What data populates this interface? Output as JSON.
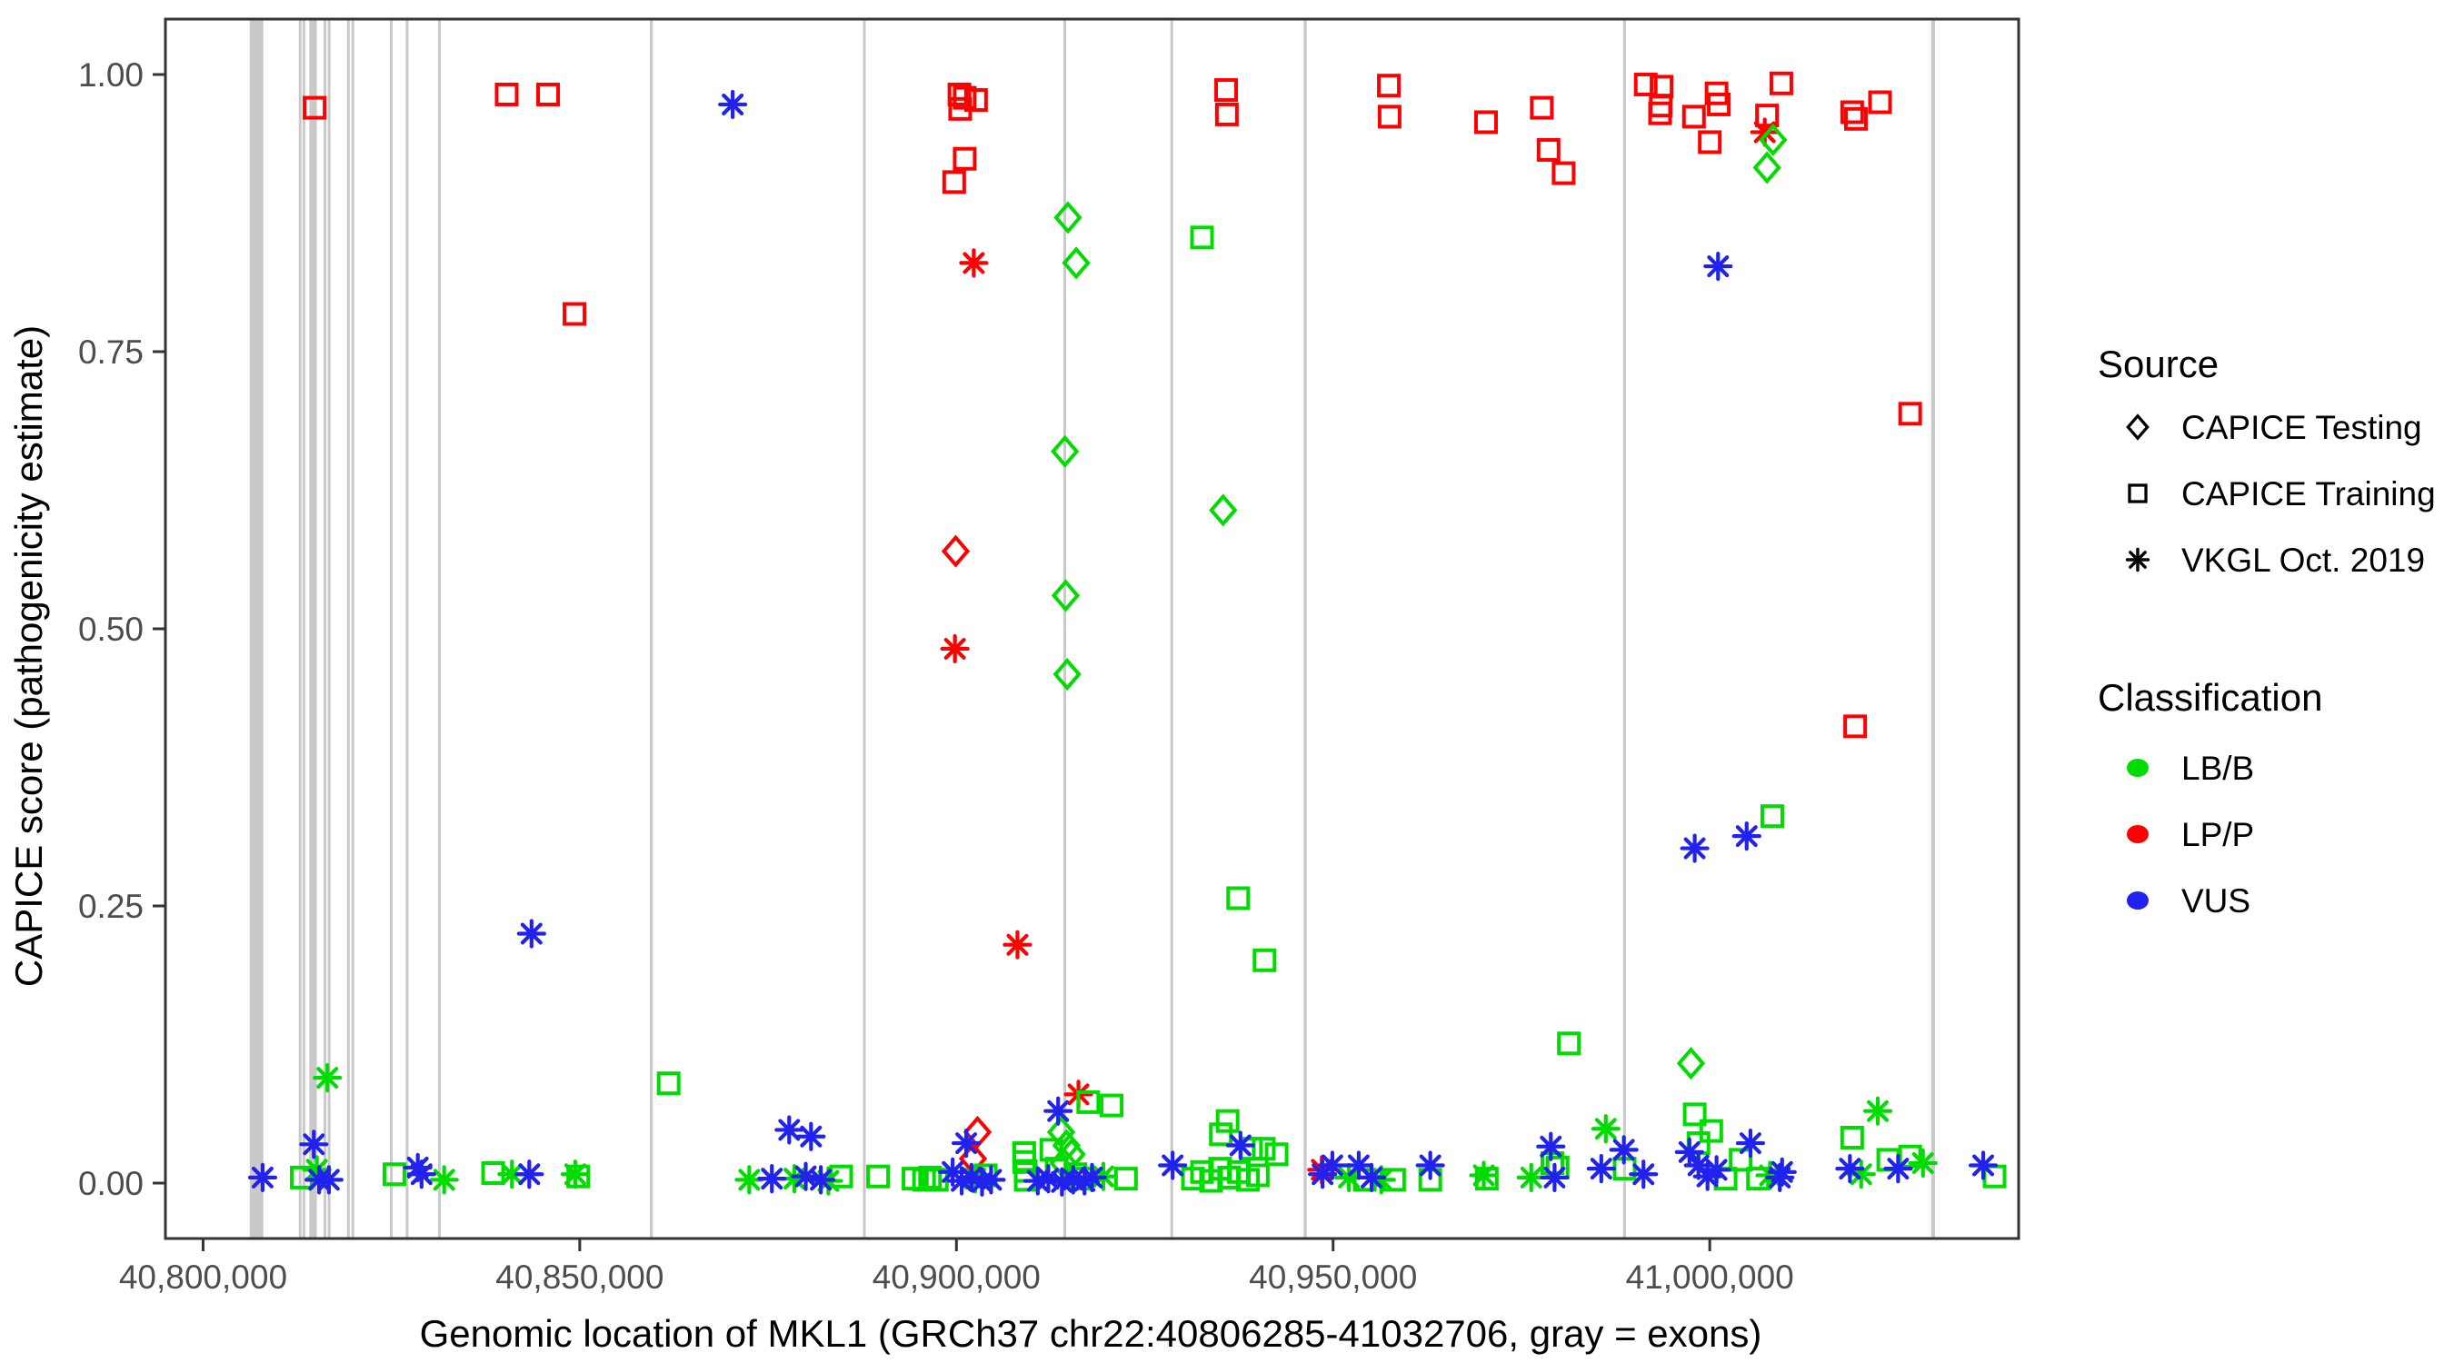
{
  "chart_data": {
    "type": "scatter",
    "title": "",
    "xlabel": "Genomic location of MKL1 (GRCh37 chr22:40806285-41032706, gray = exons)",
    "ylabel": "CAPICE score (pathogenicity estimate)",
    "xlim": [
      40795000,
      41041000
    ],
    "ylim": [
      -0.05,
      1.05
    ],
    "grid": false,
    "x_ticks": [
      {
        "value": 40800000,
        "label": "40,800,000"
      },
      {
        "value": 40850000,
        "label": "40,850,000"
      },
      {
        "value": 40900000,
        "label": "40,900,000"
      },
      {
        "value": 40950000,
        "label": "40,950,000"
      },
      {
        "value": 41000000,
        "label": "41,000,000"
      }
    ],
    "y_ticks": [
      {
        "value": 0.0,
        "label": "0.00"
      },
      {
        "value": 0.25,
        "label": "0.25"
      },
      {
        "value": 0.5,
        "label": "0.50"
      },
      {
        "value": 0.75,
        "label": "0.75"
      },
      {
        "value": 1.0,
        "label": "1.00"
      }
    ],
    "colors": {
      "G": "#00DC00",
      "P": "#FF0000",
      "U": "#2222EE",
      "exon": "#C9C9C9",
      "panel_border": "#333333",
      "tick_text": "#4D4D4D",
      "legend_glyph": "#000000"
    },
    "legend": {
      "position": "right",
      "source_title": "Source",
      "source_items": [
        {
          "label": "CAPICE Testing",
          "shape": "d"
        },
        {
          "label": "CAPICE Training",
          "shape": "s"
        },
        {
          "label": "VKGL Oct. 2019",
          "shape": "a"
        }
      ],
      "classification_title": "Classification",
      "classification_items": [
        {
          "label": "LB/B",
          "color": "G"
        },
        {
          "label": "LP/P",
          "color": "P"
        },
        {
          "label": "VUS",
          "color": "U"
        }
      ]
    },
    "exons": [
      [
        40806200,
        40808000
      ],
      [
        40812700,
        40812900
      ],
      [
        40813200,
        40813400
      ],
      [
        40814100,
        40815100
      ],
      [
        40816000,
        40816250
      ],
      [
        40816550,
        40816800
      ],
      [
        40819100,
        40819350
      ],
      [
        40819700,
        40819950
      ],
      [
        40824800,
        40825100
      ],
      [
        40826900,
        40827200
      ],
      [
        40831200,
        40831500
      ],
      [
        40859300,
        40859700
      ],
      [
        40887600,
        40887950
      ],
      [
        40914200,
        40914500
      ],
      [
        40928400,
        40928750
      ],
      [
        40946100,
        40946500
      ],
      [
        40988500,
        40988850
      ],
      [
        41029400,
        41029900
      ]
    ],
    "points_format": [
      "genomic_location",
      "capice_score",
      "source(d=CAPICE Testing,s=CAPICE Training,a=VKGL Oct. 2019)",
      "classification(G=LB/B,P=LP/P,U=VUS)"
    ],
    "points": [
      [
        40814800,
        0.97,
        "s",
        "P"
      ],
      [
        40840300,
        0.982,
        "s",
        "P"
      ],
      [
        40845800,
        0.982,
        "s",
        "P"
      ],
      [
        40849300,
        0.784,
        "s",
        "P"
      ],
      [
        40899700,
        0.903,
        "s",
        "P"
      ],
      [
        40900400,
        0.982,
        "s",
        "P"
      ],
      [
        40900500,
        0.969,
        "s",
        "P"
      ],
      [
        40901100,
        0.979,
        "s",
        "P"
      ],
      [
        40901100,
        0.924,
        "s",
        "P"
      ],
      [
        40902600,
        0.977,
        "s",
        "P"
      ],
      [
        40935800,
        0.986,
        "s",
        "P"
      ],
      [
        40935900,
        0.964,
        "s",
        "P"
      ],
      [
        40957400,
        0.99,
        "s",
        "P"
      ],
      [
        40957500,
        0.962,
        "s",
        "P"
      ],
      [
        40970300,
        0.957,
        "s",
        "P"
      ],
      [
        40977700,
        0.97,
        "s",
        "P"
      ],
      [
        40978600,
        0.932,
        "s",
        "P"
      ],
      [
        40980600,
        0.911,
        "s",
        "P"
      ],
      [
        40991500,
        0.991,
        "s",
        "P"
      ],
      [
        40993600,
        0.989,
        "s",
        "P"
      ],
      [
        40993500,
        0.972,
        "s",
        "P"
      ],
      [
        40993400,
        0.965,
        "s",
        "P"
      ],
      [
        40997900,
        0.962,
        "s",
        "P"
      ],
      [
        41000900,
        0.983,
        "s",
        "P"
      ],
      [
        41001200,
        0.973,
        "s",
        "P"
      ],
      [
        41000000,
        0.939,
        "s",
        "P"
      ],
      [
        41009500,
        0.992,
        "s",
        "P"
      ],
      [
        41007600,
        0.963,
        "s",
        "P"
      ],
      [
        41018900,
        0.966,
        "s",
        "P"
      ],
      [
        41019400,
        0.96,
        "s",
        "P"
      ],
      [
        41022600,
        0.975,
        "s",
        "P"
      ],
      [
        41026600,
        0.694,
        "s",
        "P"
      ],
      [
        41019300,
        0.412,
        "s",
        "P"
      ],
      [
        40902300,
        0.83,
        "a",
        "P"
      ],
      [
        40899800,
        0.482,
        "a",
        "P"
      ],
      [
        40908100,
        0.215,
        "a",
        "P"
      ],
      [
        40916200,
        0.08,
        "a",
        "P"
      ],
      [
        40948500,
        0.012,
        "a",
        "P"
      ],
      [
        41007300,
        0.948,
        "a",
        "P"
      ],
      [
        40899900,
        0.57,
        "d",
        "P"
      ],
      [
        40902800,
        0.046,
        "d",
        "P"
      ],
      [
        40902200,
        0.022,
        "d",
        "P"
      ],
      [
        40914800,
        0.871,
        "d",
        "G"
      ],
      [
        40915900,
        0.83,
        "d",
        "G"
      ],
      [
        40914400,
        0.66,
        "d",
        "G"
      ],
      [
        40914500,
        0.53,
        "d",
        "G"
      ],
      [
        40914700,
        0.459,
        "d",
        "G"
      ],
      [
        40935400,
        0.607,
        "d",
        "G"
      ],
      [
        41008400,
        0.941,
        "d",
        "G"
      ],
      [
        41007600,
        0.916,
        "d",
        "G"
      ],
      [
        40997500,
        0.108,
        "d",
        "G"
      ],
      [
        40913900,
        0.046,
        "d",
        "G"
      ],
      [
        40914600,
        0.034,
        "d",
        "G"
      ],
      [
        40915300,
        0.026,
        "d",
        "G"
      ],
      [
        40914200,
        0.018,
        "d",
        "G"
      ],
      [
        40813100,
        0.005,
        "s",
        "G"
      ],
      [
        40825400,
        0.008,
        "s",
        "G"
      ],
      [
        40838500,
        0.009,
        "s",
        "G"
      ],
      [
        40849800,
        0.006,
        "s",
        "G"
      ],
      [
        40861800,
        0.09,
        "s",
        "G"
      ],
      [
        40884700,
        0.006,
        "s",
        "G"
      ],
      [
        40889600,
        0.006,
        "s",
        "G"
      ],
      [
        40894300,
        0.004,
        "s",
        "G"
      ],
      [
        40895700,
        0.003,
        "s",
        "G"
      ],
      [
        40896500,
        0.005,
        "s",
        "G"
      ],
      [
        40897400,
        0.003,
        "s",
        "G"
      ],
      [
        40903900,
        0.007,
        "s",
        "G"
      ],
      [
        40909000,
        0.027,
        "s",
        "G"
      ],
      [
        40909000,
        0.019,
        "s",
        "G"
      ],
      [
        40909200,
        0.011,
        "s",
        "G"
      ],
      [
        40909200,
        0.003,
        "s",
        "G"
      ],
      [
        40912600,
        0.03,
        "s",
        "G"
      ],
      [
        40913300,
        0.013,
        "s",
        "G"
      ],
      [
        40915800,
        0.008,
        "s",
        "G"
      ],
      [
        40916600,
        0.004,
        "s",
        "G"
      ],
      [
        40917500,
        0.073,
        "s",
        "G"
      ],
      [
        40920600,
        0.07,
        "s",
        "G"
      ],
      [
        40922500,
        0.004,
        "s",
        "G"
      ],
      [
        40931400,
        0.004,
        "s",
        "G"
      ],
      [
        40932600,
        0.01,
        "s",
        "G"
      ],
      [
        40933800,
        0.002,
        "s",
        "G"
      ],
      [
        40935000,
        0.013,
        "s",
        "G"
      ],
      [
        40936200,
        0.005,
        "s",
        "G"
      ],
      [
        40937500,
        0.01,
        "s",
        "G"
      ],
      [
        40938700,
        0.003,
        "s",
        "G"
      ],
      [
        40940000,
        0.007,
        "s",
        "G"
      ],
      [
        40936000,
        0.056,
        "s",
        "G"
      ],
      [
        40935100,
        0.044,
        "s",
        "G"
      ],
      [
        40939100,
        0.031,
        "s",
        "G"
      ],
      [
        40940800,
        0.031,
        "s",
        "G"
      ],
      [
        40942500,
        0.026,
        "s",
        "G"
      ],
      [
        40932600,
        0.853,
        "s",
        "G"
      ],
      [
        40937400,
        0.257,
        "s",
        "G"
      ],
      [
        40940900,
        0.201,
        "s",
        "G"
      ],
      [
        40954200,
        0.003,
        "s",
        "G"
      ],
      [
        40958100,
        0.003,
        "s",
        "G"
      ],
      [
        40962900,
        0.003,
        "s",
        "G"
      ],
      [
        40970400,
        0.004,
        "s",
        "G"
      ],
      [
        40979100,
        0.018,
        "s",
        "G"
      ],
      [
        40979800,
        0.014,
        "s",
        "G"
      ],
      [
        40981300,
        0.126,
        "s",
        "G"
      ],
      [
        40988700,
        0.013,
        "s",
        "G"
      ],
      [
        40998000,
        0.062,
        "s",
        "G"
      ],
      [
        41000200,
        0.047,
        "s",
        "G"
      ],
      [
        40998500,
        0.036,
        "s",
        "G"
      ],
      [
        41002100,
        0.004,
        "s",
        "G"
      ],
      [
        41004100,
        0.021,
        "s",
        "G"
      ],
      [
        41006400,
        0.004,
        "s",
        "G"
      ],
      [
        41008300,
        0.331,
        "s",
        "G"
      ],
      [
        41018900,
        0.041,
        "s",
        "G"
      ],
      [
        41023700,
        0.021,
        "s",
        "G"
      ],
      [
        41026600,
        0.024,
        "s",
        "G"
      ],
      [
        41037800,
        0.006,
        "s",
        "G"
      ],
      [
        40815100,
        0.012,
        "a",
        "G"
      ],
      [
        40816500,
        0.095,
        "a",
        "G"
      ],
      [
        40832000,
        0.003,
        "a",
        "G"
      ],
      [
        40841000,
        0.008,
        "a",
        "G"
      ],
      [
        40849400,
        0.008,
        "a",
        "G"
      ],
      [
        40872500,
        0.003,
        "a",
        "G"
      ],
      [
        40878500,
        0.004,
        "a",
        "G"
      ],
      [
        40883000,
        0.002,
        "a",
        "G"
      ],
      [
        40902500,
        0.004,
        "a",
        "G"
      ],
      [
        40919500,
        0.006,
        "a",
        "G"
      ],
      [
        40952100,
        0.005,
        "a",
        "G"
      ],
      [
        40956400,
        0.003,
        "a",
        "G"
      ],
      [
        40970000,
        0.007,
        "a",
        "G"
      ],
      [
        40976300,
        0.005,
        "a",
        "G"
      ],
      [
        40986200,
        0.049,
        "a",
        "G"
      ],
      [
        41008000,
        0.007,
        "a",
        "G"
      ],
      [
        41020100,
        0.008,
        "a",
        "G"
      ],
      [
        41022300,
        0.065,
        "a",
        "G"
      ],
      [
        41028300,
        0.018,
        "a",
        "G"
      ],
      [
        40807900,
        0.005,
        "a",
        "U"
      ],
      [
        40814700,
        0.035,
        "a",
        "U"
      ],
      [
        40815400,
        0.003,
        "a",
        "U"
      ],
      [
        40816700,
        0.003,
        "a",
        "U"
      ],
      [
        40828500,
        0.014,
        "a",
        "U"
      ],
      [
        40829000,
        0.008,
        "a",
        "U"
      ],
      [
        40843300,
        0.008,
        "a",
        "U"
      ],
      [
        40843600,
        0.225,
        "a",
        "U"
      ],
      [
        40870300,
        0.973,
        "a",
        "U"
      ],
      [
        40875500,
        0.004,
        "a",
        "U"
      ],
      [
        40877800,
        0.048,
        "a",
        "U"
      ],
      [
        40880700,
        0.042,
        "a",
        "U"
      ],
      [
        40880000,
        0.006,
        "a",
        "U"
      ],
      [
        40882000,
        0.003,
        "a",
        "U"
      ],
      [
        40899500,
        0.01,
        "a",
        "U"
      ],
      [
        40900700,
        0.002,
        "a",
        "U"
      ],
      [
        40901300,
        0.036,
        "a",
        "U"
      ],
      [
        40902000,
        0.005,
        "a",
        "U"
      ],
      [
        40903400,
        0.001,
        "a",
        "U"
      ],
      [
        40904600,
        0.003,
        "a",
        "U"
      ],
      [
        40910800,
        0.002,
        "a",
        "U"
      ],
      [
        40912200,
        0.004,
        "a",
        "U"
      ],
      [
        40913500,
        0.065,
        "a",
        "U"
      ],
      [
        40914000,
        0.001,
        "a",
        "U"
      ],
      [
        40915500,
        0.003,
        "a",
        "U"
      ],
      [
        40917000,
        0.002,
        "a",
        "U"
      ],
      [
        40918000,
        0.005,
        "a",
        "U"
      ],
      [
        40928700,
        0.016,
        "a",
        "U"
      ],
      [
        40937700,
        0.034,
        "a",
        "U"
      ],
      [
        40948600,
        0.008,
        "a",
        "U"
      ],
      [
        40949900,
        0.016,
        "a",
        "U"
      ],
      [
        40953400,
        0.016,
        "a",
        "U"
      ],
      [
        40955100,
        0.005,
        "a",
        "U"
      ],
      [
        40962900,
        0.016,
        "a",
        "U"
      ],
      [
        40978900,
        0.033,
        "a",
        "U"
      ],
      [
        40979400,
        0.005,
        "a",
        "U"
      ],
      [
        40985600,
        0.013,
        "a",
        "U"
      ],
      [
        40988600,
        0.03,
        "a",
        "U"
      ],
      [
        40991200,
        0.008,
        "a",
        "U"
      ],
      [
        40997300,
        0.028,
        "a",
        "U"
      ],
      [
        40998500,
        0.016,
        "a",
        "U"
      ],
      [
        40999700,
        0.006,
        "a",
        "U"
      ],
      [
        41000900,
        0.012,
        "a",
        "U"
      ],
      [
        41005400,
        0.036,
        "a",
        "U"
      ],
      [
        41009300,
        0.005,
        "a",
        "U"
      ],
      [
        41009600,
        0.01,
        "a",
        "U"
      ],
      [
        41018600,
        0.013,
        "a",
        "U"
      ],
      [
        41025000,
        0.013,
        "a",
        "U"
      ],
      [
        41001100,
        0.827,
        "a",
        "U"
      ],
      [
        40998000,
        0.302,
        "a",
        "U"
      ],
      [
        41004900,
        0.313,
        "a",
        "U"
      ],
      [
        41036300,
        0.016,
        "a",
        "U"
      ]
    ]
  }
}
